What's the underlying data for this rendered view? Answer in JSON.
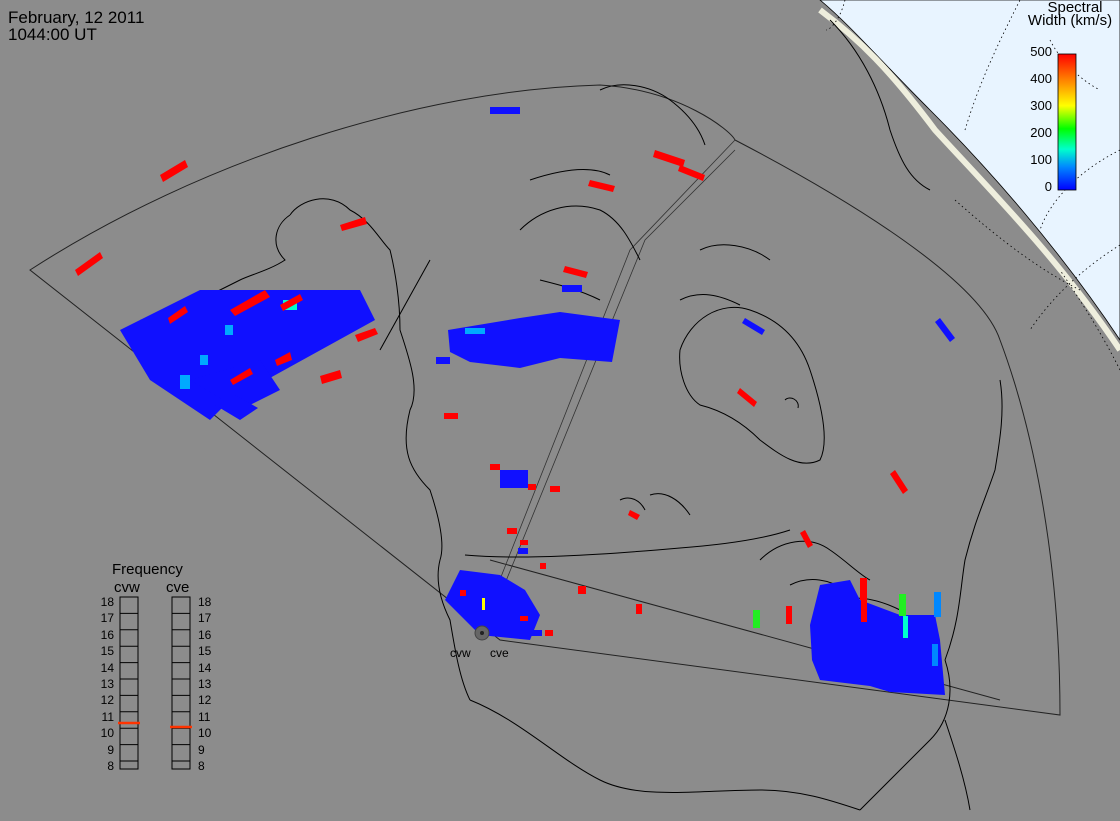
{
  "header": {
    "date": "February, 12 2011",
    "time": "1044:00 UT"
  },
  "legend": {
    "title_line1": "Spectral",
    "title_line2": "Width (km/s)",
    "ticks": [
      "500",
      "400",
      "300",
      "200",
      "100",
      "0"
    ],
    "colors": [
      "#ff0000",
      "#ff8800",
      "#ffff00",
      "#00ff00",
      "#00ffcc",
      "#0088ff",
      "#0000ff"
    ]
  },
  "frequency": {
    "title": "Frequency",
    "radars": [
      {
        "label": "cvw",
        "value_mhz": 10.9
      },
      {
        "label": "cve",
        "value_mhz": 10.8
      }
    ],
    "scale": [
      "18",
      "17",
      "16",
      "15",
      "14",
      "13",
      "12",
      "11",
      "10",
      "9",
      "8"
    ]
  },
  "radar_sites": [
    {
      "label": "cvw"
    },
    {
      "label": "cve"
    }
  ],
  "colors": {
    "background": "#8c8c8c",
    "sunlit": "#e8f4ff",
    "low_width": "#1010ff",
    "high_width": "#ff0000",
    "mid_width": "#00e0ff",
    "green": "#22ee22"
  }
}
